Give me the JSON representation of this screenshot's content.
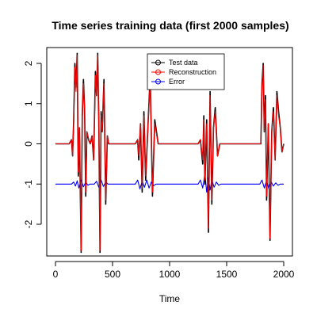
{
  "chart_data": {
    "type": "line",
    "title": "Time series training data (first 2000 samples)",
    "xlabel": "Time",
    "ylabel": "",
    "xlim": [
      0,
      2000
    ],
    "ylim": [
      -2.7,
      2.25
    ],
    "x_ticks": [
      0,
      500,
      1000,
      1500,
      2000
    ],
    "y_ticks": [
      -2,
      -1,
      0,
      1,
      2
    ],
    "grid": false,
    "legend_position": "top-right",
    "colors": {
      "test": "#000000",
      "reconstruction": "#ff0000",
      "error": "#0000ff"
    },
    "series": [
      {
        "name": "Test data",
        "color": "#000000",
        "x": [
          0,
          120,
          140,
          150,
          160,
          170,
          180,
          190,
          200,
          210,
          225,
          235,
          245,
          255,
          265,
          275,
          290,
          305,
          320,
          335,
          350,
          360,
          370,
          380,
          390,
          400,
          410,
          425,
          440,
          455,
          465,
          480,
          650,
          700,
          720,
          730,
          745,
          760,
          775,
          790,
          810,
          830,
          850,
          870,
          900,
          1200,
          1250,
          1270,
          1290,
          1300,
          1310,
          1325,
          1340,
          1355,
          1370,
          1385,
          1400,
          1420,
          1440,
          1480,
          1800,
          1810,
          1820,
          1830,
          1840,
          1850,
          1865,
          1880,
          1895,
          1910,
          1925,
          1940,
          1955,
          1970,
          1985,
          2000
        ],
        "y": [
          0,
          0,
          0.1,
          -0.3,
          0.6,
          2.0,
          1.4,
          2.25,
          -0.8,
          0.4,
          -2.7,
          0.7,
          1.6,
          0.9,
          -1.3,
          0.3,
          0.1,
          0,
          0.2,
          -0.4,
          1.8,
          1.2,
          2.25,
          0.5,
          -2.7,
          0.8,
          0.3,
          1.6,
          -1.5,
          0.2,
          0,
          0,
          0,
          0,
          0.1,
          -0.4,
          0.5,
          -1.2,
          0.8,
          -0.9,
          0.4,
          1.7,
          -1.3,
          0.6,
          0,
          0,
          0,
          0.1,
          -0.5,
          0.7,
          -1.0,
          0.6,
          -2.2,
          1.3,
          -1.5,
          0.4,
          0.9,
          -0.3,
          0,
          0,
          0,
          1.5,
          2.0,
          0.3,
          1.2,
          -1.4,
          0.5,
          -2.4,
          0.3,
          0.9,
          -0.4,
          1.3,
          0.8,
          0.4,
          -0.2,
          0
        ]
      },
      {
        "name": "Reconstruction",
        "color": "#ff0000",
        "x": [
          0,
          120,
          140,
          150,
          160,
          170,
          180,
          190,
          200,
          210,
          225,
          235,
          245,
          255,
          265,
          275,
          290,
          305,
          320,
          335,
          350,
          360,
          370,
          380,
          390,
          400,
          410,
          425,
          440,
          455,
          465,
          480,
          650,
          700,
          720,
          730,
          745,
          760,
          775,
          790,
          810,
          830,
          850,
          870,
          900,
          1200,
          1250,
          1270,
          1290,
          1300,
          1310,
          1325,
          1340,
          1355,
          1370,
          1385,
          1400,
          1420,
          1440,
          1480,
          1800,
          1810,
          1820,
          1830,
          1840,
          1850,
          1865,
          1880,
          1895,
          1910,
          1925,
          1940,
          1955,
          1970,
          1985,
          2000
        ],
        "y": [
          0,
          0,
          0.1,
          -0.3,
          0.5,
          1.9,
          1.3,
          2.2,
          -0.7,
          0.4,
          -2.65,
          0.6,
          1.5,
          0.9,
          -1.2,
          0.3,
          0.1,
          0,
          0.2,
          -0.4,
          1.7,
          1.2,
          2.2,
          0.5,
          -2.65,
          0.7,
          0.3,
          1.5,
          -1.4,
          0.2,
          0,
          0,
          0,
          0,
          0.1,
          -0.3,
          0.5,
          -1.1,
          0.7,
          -0.8,
          0.4,
          1.6,
          -1.2,
          0.5,
          0,
          0,
          0,
          0.1,
          -0.4,
          0.6,
          -0.9,
          0.5,
          -2.1,
          1.2,
          -1.4,
          0.4,
          0.8,
          -0.3,
          0,
          0,
          0,
          1.4,
          1.95,
          0.3,
          1.1,
          -1.3,
          0.5,
          -2.35,
          0.3,
          0.8,
          -0.4,
          1.2,
          0.7,
          0.4,
          -0.2,
          0
        ]
      },
      {
        "name": "Error",
        "color": "#0000ff",
        "x": [
          0,
          140,
          160,
          175,
          190,
          205,
          225,
          245,
          265,
          285,
          300,
          340,
          360,
          380,
          400,
          420,
          440,
          460,
          700,
          720,
          740,
          760,
          780,
          800,
          820,
          840,
          860,
          880,
          1250,
          1270,
          1290,
          1310,
          1325,
          1340,
          1355,
          1370,
          1390,
          1410,
          1430,
          1450,
          1790,
          1810,
          1830,
          1850,
          1870,
          1890,
          1910,
          1930,
          1950,
          1970,
          2000
        ],
        "y": [
          -1.0,
          -1.0,
          -0.95,
          -1.05,
          -0.92,
          -1.1,
          -0.9,
          -1.07,
          -0.95,
          -1.03,
          -1.0,
          -1.0,
          -0.93,
          -1.08,
          -0.9,
          -1.06,
          -0.95,
          -1.0,
          -1.0,
          -0.9,
          -1.12,
          -0.93,
          -1.08,
          -0.9,
          -1.1,
          -0.95,
          -1.04,
          -1.0,
          -1.0,
          -0.9,
          -1.1,
          -0.75,
          -1.2,
          -0.85,
          -1.15,
          -0.9,
          -1.08,
          -0.95,
          -1.03,
          -1.0,
          -1.0,
          -0.9,
          -1.1,
          -0.92,
          -1.12,
          -0.95,
          -1.05,
          -0.97,
          -1.03,
          -1.0,
          -1.0
        ]
      }
    ]
  }
}
